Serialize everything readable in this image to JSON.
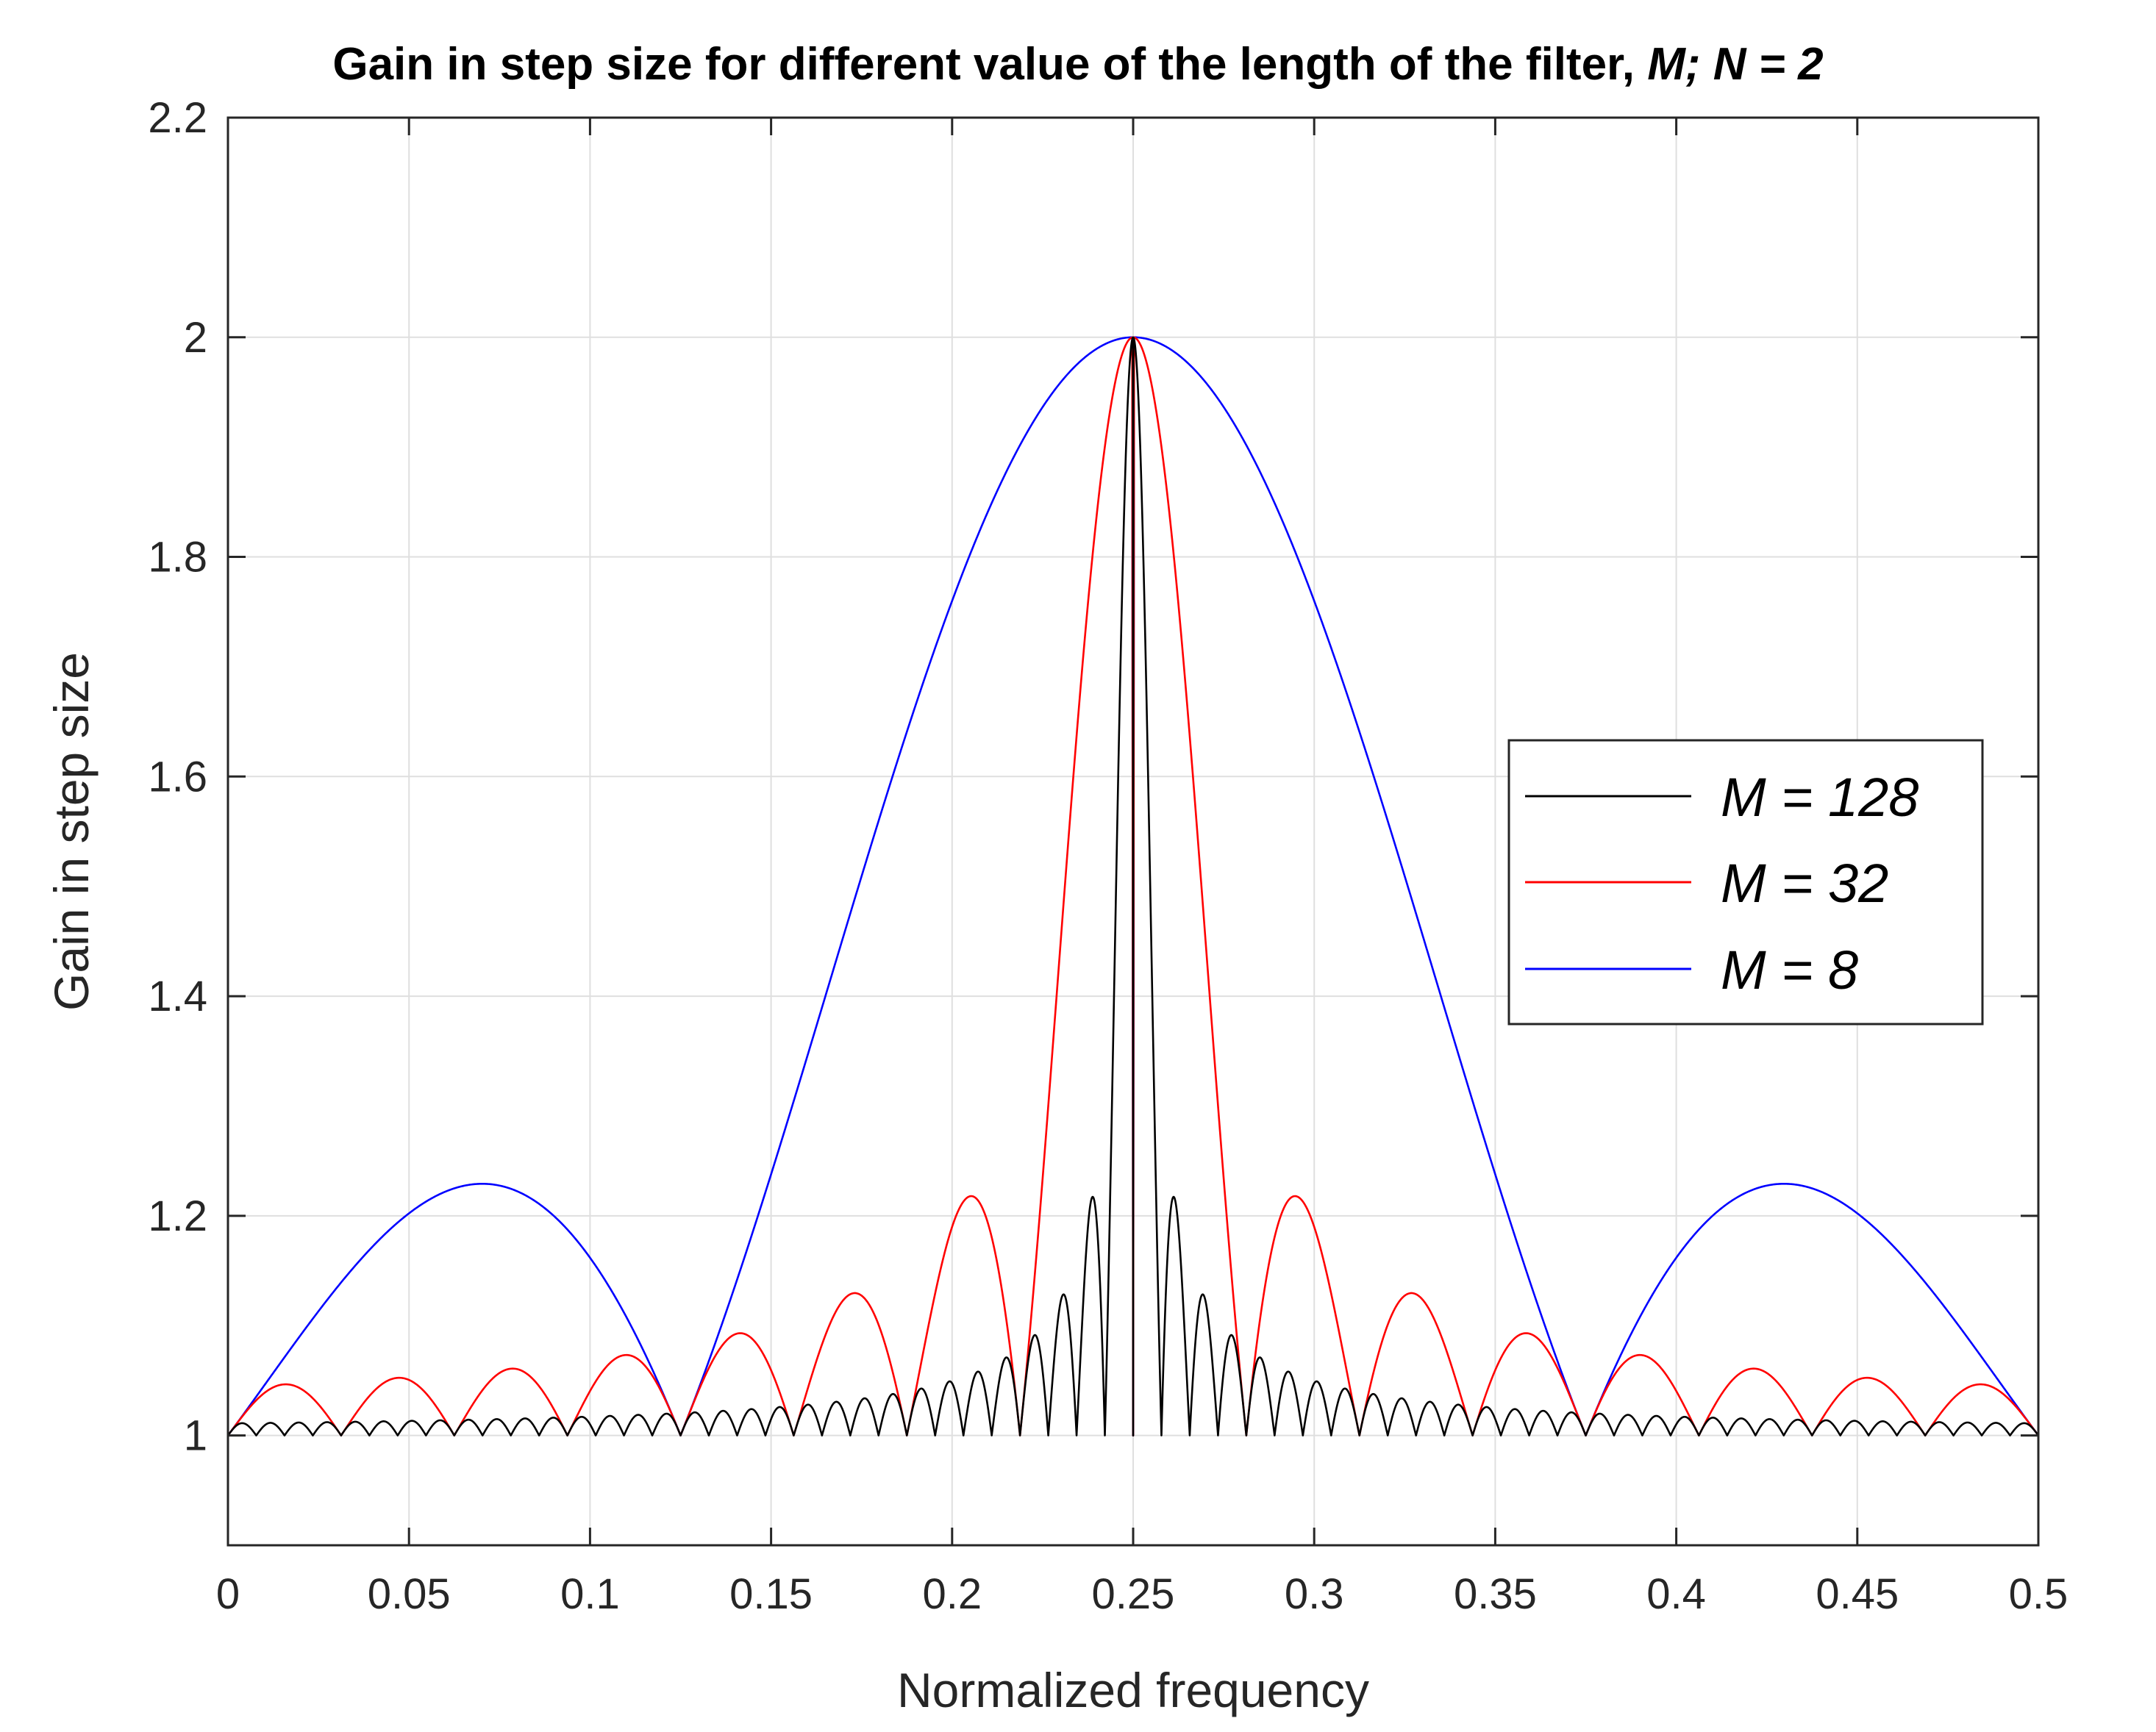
{
  "chart_data": {
    "type": "line",
    "title": "Gain in step size for different value of the length of the filter, ",
    "title_italic": "M; N = 2",
    "xlabel": "Normalized frequency",
    "ylabel": "Gain in step size",
    "xlim": [
      0,
      0.5
    ],
    "ylim": [
      0.9,
      2.2
    ],
    "xticks": [
      0,
      0.05,
      0.1,
      0.15,
      0.2,
      0.25,
      0.3,
      0.35,
      0.4,
      0.45,
      0.5
    ],
    "xtick_labels": [
      "0",
      "0.05",
      "0.1",
      "0.15",
      "0.2",
      "0.25",
      "0.3",
      "0.35",
      "0.4",
      "0.45",
      "0.5"
    ],
    "yticks": [
      1,
      1.2,
      1.4,
      1.6,
      1.8,
      2,
      2.2
    ],
    "ytick_labels": [
      "1",
      "1.2",
      "1.4",
      "1.6",
      "1.8",
      "2",
      "2.2"
    ],
    "grid": true,
    "legend_position": "right",
    "N": 2,
    "series": [
      {
        "name": "M = 128",
        "M": 128,
        "color": "#000000"
      },
      {
        "name": "M = 32",
        "M": 32,
        "color": "#ff0000"
      },
      {
        "name": "M = 8",
        "M": 8,
        "color": "#0000ff"
      }
    ]
  }
}
